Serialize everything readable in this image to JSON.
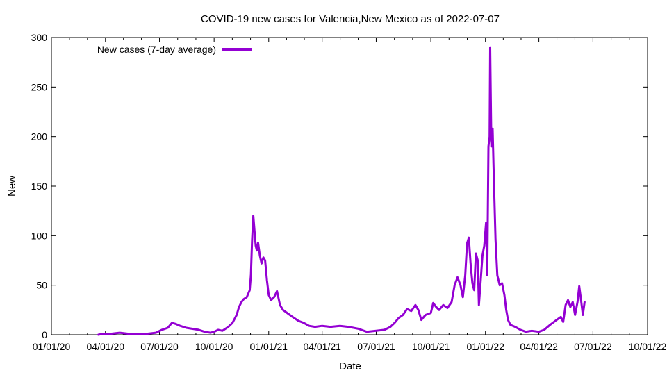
{
  "chart_data": {
    "type": "line",
    "title": "COVID-19 new cases for Valencia,New Mexico as of 2022-07-07",
    "xlabel": "Date",
    "ylabel": "New",
    "xlim": [
      "2020-01-01",
      "2022-10-01"
    ],
    "ylim": [
      0,
      300
    ],
    "y_ticks": [
      0,
      50,
      100,
      150,
      200,
      250,
      300
    ],
    "y_tick_labels": [
      "0",
      "50",
      "100",
      "150",
      "200",
      "250",
      "300"
    ],
    "x_ticks": [
      "2020-01-01",
      "2020-04-01",
      "2020-07-01",
      "2020-10-01",
      "2021-01-01",
      "2021-04-01",
      "2021-07-01",
      "2021-10-01",
      "2022-01-01",
      "2022-04-01",
      "2022-07-01",
      "2022-10-01"
    ],
    "x_tick_labels": [
      "01/01/20",
      "04/01/20",
      "07/01/20",
      "10/01/20",
      "01/01/21",
      "04/01/21",
      "07/01/21",
      "10/01/21",
      "01/01/22",
      "04/01/22",
      "07/01/22",
      "10/01/22"
    ],
    "grid": false,
    "legend_position": "top-left",
    "series": [
      {
        "name": "New cases (7-day average)",
        "color": "#9400d3",
        "points": [
          [
            "2020-03-20",
            0
          ],
          [
            "2020-03-28",
            1
          ],
          [
            "2020-04-10",
            1
          ],
          [
            "2020-04-25",
            2
          ],
          [
            "2020-05-10",
            1
          ],
          [
            "2020-05-25",
            1
          ],
          [
            "2020-06-10",
            1
          ],
          [
            "2020-06-25",
            2
          ],
          [
            "2020-07-05",
            5
          ],
          [
            "2020-07-15",
            7
          ],
          [
            "2020-07-22",
            12
          ],
          [
            "2020-07-28",
            11
          ],
          [
            "2020-08-05",
            9
          ],
          [
            "2020-08-15",
            7
          ],
          [
            "2020-08-25",
            6
          ],
          [
            "2020-09-05",
            5
          ],
          [
            "2020-09-15",
            3
          ],
          [
            "2020-09-25",
            2
          ],
          [
            "2020-10-01",
            3
          ],
          [
            "2020-10-08",
            5
          ],
          [
            "2020-10-15",
            4
          ],
          [
            "2020-10-25",
            8
          ],
          [
            "2020-11-01",
            12
          ],
          [
            "2020-11-08",
            20
          ],
          [
            "2020-11-12",
            28
          ],
          [
            "2020-11-16",
            33
          ],
          [
            "2020-11-20",
            36
          ],
          [
            "2020-11-25",
            38
          ],
          [
            "2020-11-30",
            45
          ],
          [
            "2020-12-02",
            60
          ],
          [
            "2020-12-04",
            95
          ],
          [
            "2020-12-06",
            120
          ],
          [
            "2020-12-08",
            105
          ],
          [
            "2020-12-10",
            90
          ],
          [
            "2020-12-12",
            85
          ],
          [
            "2020-12-14",
            93
          ],
          [
            "2020-12-17",
            80
          ],
          [
            "2020-12-20",
            72
          ],
          [
            "2020-12-23",
            78
          ],
          [
            "2020-12-26",
            75
          ],
          [
            "2020-12-29",
            55
          ],
          [
            "2021-01-01",
            40
          ],
          [
            "2021-01-05",
            35
          ],
          [
            "2021-01-10",
            38
          ],
          [
            "2021-01-15",
            44
          ],
          [
            "2021-01-20",
            30
          ],
          [
            "2021-01-25",
            25
          ],
          [
            "2021-02-01",
            22
          ],
          [
            "2021-02-10",
            18
          ],
          [
            "2021-02-20",
            14
          ],
          [
            "2021-03-01",
            12
          ],
          [
            "2021-03-10",
            9
          ],
          [
            "2021-03-20",
            8
          ],
          [
            "2021-04-01",
            9
          ],
          [
            "2021-04-15",
            8
          ],
          [
            "2021-05-01",
            9
          ],
          [
            "2021-05-15",
            8
          ],
          [
            "2021-06-01",
            6
          ],
          [
            "2021-06-15",
            3
          ],
          [
            "2021-07-01",
            4
          ],
          [
            "2021-07-15",
            5
          ],
          [
            "2021-07-25",
            8
          ],
          [
            "2021-08-01",
            12
          ],
          [
            "2021-08-08",
            17
          ],
          [
            "2021-08-15",
            20
          ],
          [
            "2021-08-22",
            26
          ],
          [
            "2021-08-29",
            24
          ],
          [
            "2021-09-05",
            30
          ],
          [
            "2021-09-10",
            25
          ],
          [
            "2021-09-15",
            15
          ],
          [
            "2021-09-22",
            20
          ],
          [
            "2021-10-01",
            22
          ],
          [
            "2021-10-05",
            32
          ],
          [
            "2021-10-10",
            28
          ],
          [
            "2021-10-15",
            25
          ],
          [
            "2021-10-22",
            30
          ],
          [
            "2021-10-29",
            27
          ],
          [
            "2021-11-05",
            33
          ],
          [
            "2021-11-10",
            50
          ],
          [
            "2021-11-15",
            58
          ],
          [
            "2021-11-20",
            50
          ],
          [
            "2021-11-24",
            38
          ],
          [
            "2021-11-28",
            60
          ],
          [
            "2021-12-01",
            92
          ],
          [
            "2021-12-04",
            98
          ],
          [
            "2021-12-07",
            72
          ],
          [
            "2021-12-10",
            52
          ],
          [
            "2021-12-13",
            45
          ],
          [
            "2021-12-16",
            82
          ],
          [
            "2021-12-19",
            75
          ],
          [
            "2021-12-21",
            30
          ],
          [
            "2021-12-24",
            55
          ],
          [
            "2021-12-27",
            80
          ],
          [
            "2021-12-30",
            90
          ],
          [
            "2022-01-02",
            113
          ],
          [
            "2022-01-04",
            60
          ],
          [
            "2022-01-06",
            190
          ],
          [
            "2022-01-08",
            200
          ],
          [
            "2022-01-09",
            290
          ],
          [
            "2022-01-11",
            190
          ],
          [
            "2022-01-13",
            208
          ],
          [
            "2022-01-15",
            160
          ],
          [
            "2022-01-18",
            96
          ],
          [
            "2022-01-21",
            60
          ],
          [
            "2022-01-25",
            50
          ],
          [
            "2022-01-29",
            52
          ],
          [
            "2022-02-02",
            40
          ],
          [
            "2022-02-05",
            25
          ],
          [
            "2022-02-08",
            15
          ],
          [
            "2022-02-12",
            10
          ],
          [
            "2022-02-20",
            8
          ],
          [
            "2022-03-01",
            5
          ],
          [
            "2022-03-10",
            3
          ],
          [
            "2022-03-20",
            4
          ],
          [
            "2022-04-01",
            3
          ],
          [
            "2022-04-10",
            5
          ],
          [
            "2022-04-20",
            10
          ],
          [
            "2022-05-01",
            15
          ],
          [
            "2022-05-08",
            18
          ],
          [
            "2022-05-12",
            13
          ],
          [
            "2022-05-16",
            30
          ],
          [
            "2022-05-20",
            35
          ],
          [
            "2022-05-24",
            28
          ],
          [
            "2022-05-28",
            33
          ],
          [
            "2022-06-01",
            20
          ],
          [
            "2022-06-05",
            33
          ],
          [
            "2022-06-08",
            49
          ],
          [
            "2022-06-11",
            35
          ],
          [
            "2022-06-14",
            20
          ],
          [
            "2022-06-17",
            33
          ]
        ]
      }
    ]
  }
}
